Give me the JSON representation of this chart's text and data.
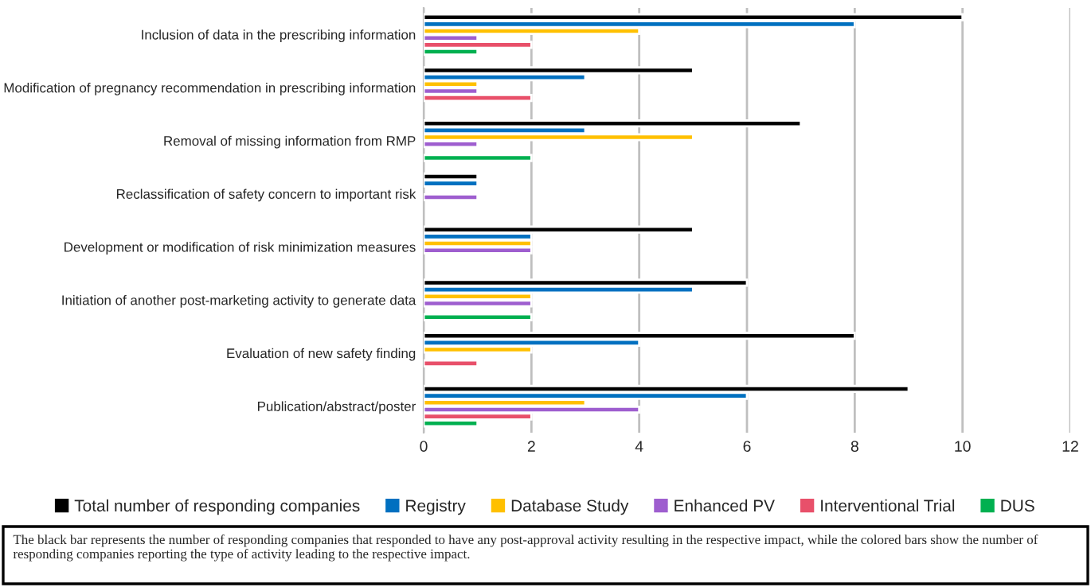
{
  "chart_data": {
    "type": "bar",
    "orientation": "horizontal",
    "categories": [
      "Inclusion of data in the prescribing information",
      "Modification of pregnancy recommendation in prescribing information",
      "Removal of missing information from RMP",
      "Reclassification of safety concern to important risk",
      "Development or modification of risk minimization measures",
      "Initiation of another post-marketing activity to generate data",
      "Evaluation of new safety finding",
      "Publication/abstract/poster"
    ],
    "series": [
      {
        "name": "Total number of responding companies",
        "color": "#000000",
        "values": [
          10,
          5,
          7,
          1,
          5,
          6,
          8,
          9
        ]
      },
      {
        "name": "Registry",
        "color": "#0070c0",
        "values": [
          8,
          3,
          3,
          1,
          2,
          5,
          4,
          6
        ]
      },
      {
        "name": "Database Study",
        "color": "#ffc000",
        "values": [
          4,
          1,
          5,
          null,
          2,
          2,
          2,
          3
        ]
      },
      {
        "name": "Enhanced PV",
        "color": "#9e5ecf",
        "values": [
          1,
          1,
          1,
          1,
          2,
          2,
          null,
          4
        ]
      },
      {
        "name": "Interventional Trial",
        "color": "#e8506a",
        "values": [
          2,
          2,
          null,
          null,
          null,
          null,
          1,
          2
        ]
      },
      {
        "name": "DUS",
        "color": "#00b050",
        "values": [
          1,
          null,
          2,
          null,
          null,
          2,
          null,
          1
        ]
      }
    ],
    "xlim": [
      0,
      12
    ],
    "xticks": [
      0,
      2,
      4,
      6,
      8,
      10,
      12
    ],
    "grid": "x",
    "legend": "bottom",
    "annotations": [
      "The black bar represents the number of responding companies that responded to have any post-approval activity resulting in the respective impact, while the colored bars show the number of responding companies reporting the type of activity leading to the respective impact."
    ]
  }
}
